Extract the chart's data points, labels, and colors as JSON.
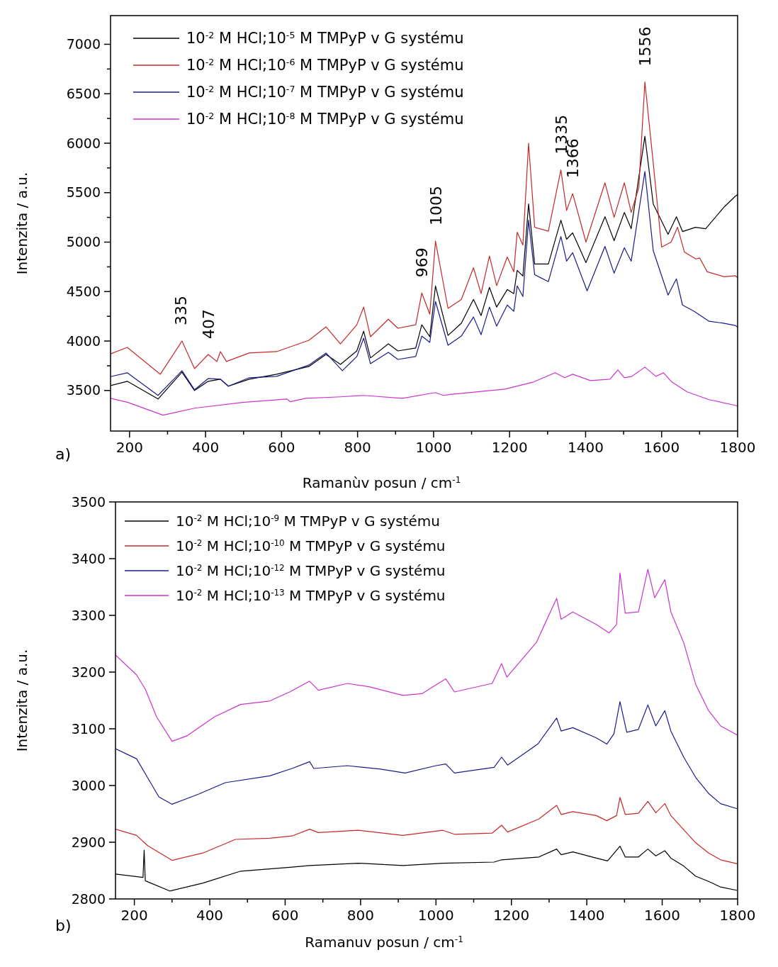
{
  "chart_data": [
    {
      "type": "line",
      "xlabel": "Ramanùv posun / cm$^{-1}$",
      "ylabel": "Intenzita / a.u.",
      "xlim": [
        150,
        1800
      ],
      "xticks": [
        200,
        {
          "value": 300,
          "label": null
        },
        400,
        {
          "value": 500,
          "label": null
        },
        600,
        {
          "value": 700,
          "label": null
        },
        800,
        {
          "value": 900,
          "label": null
        },
        1000,
        {
          "value": 1100,
          "label": null
        },
        1200,
        {
          "value": 1300,
          "label": null
        },
        1400,
        {
          "value": 1500,
          "label": null
        },
        1600,
        {
          "value": 1700,
          "label": null
        },
        1800
      ],
      "ylim": [
        3090,
        7290
      ],
      "yticks": [
        3500,
        {
          "value": 3750,
          "label": null
        },
        4000,
        {
          "value": 4250,
          "label": null
        },
        4500,
        {
          "value": 4750,
          "label": null
        },
        5000,
        {
          "value": 5250,
          "label": null
        },
        5500,
        {
          "value": 5750,
          "label": null
        },
        6000,
        {
          "value": 6250,
          "label": null
        },
        6500,
        {
          "value": 6750,
          "label": null
        },
        7000
      ],
      "grid": false,
      "legend": "top left",
      "annotations": [
        "a)",
        {
          "text": "335",
          "x": 335,
          "y": 4000
        },
        {
          "text": "407",
          "x": 407,
          "y": 3864
        },
        {
          "text": "969",
          "x": 969,
          "y": 4486
        },
        {
          "text": "1005",
          "x": 1005,
          "y": 5010
        },
        {
          "text": "1335",
          "x": 1335,
          "y": 5730
        },
        {
          "text": "1366",
          "x": 1366,
          "y": 5490
        },
        {
          "text": "1556",
          "x": 1556,
          "y": 6620
        }
      ],
      "series": [
        {
          "name": "10$^{-2}$ M HCl;10$^{-5}$ M TMPyP v G systému",
          "color": "#000000",
          "x": [
            150,
            194,
            275,
            338,
            371,
            407,
            439,
            460,
            515,
            587,
            672,
            717,
            755,
            798,
            816,
            834,
            881,
            906,
            953,
            969,
            990,
            1005,
            1038,
            1073,
            1105,
            1125,
            1147,
            1166,
            1194,
            1211,
            1220,
            1235,
            1250,
            1266,
            1302,
            1335,
            1350,
            1366,
            1401,
            1451,
            1475,
            1502,
            1520,
            1556,
            1578,
            1617,
            1639,
            1655,
            1689,
            1716,
            1765,
            1794,
            1800
          ],
          "values": [
            3550,
            3593,
            3414,
            3686,
            3500,
            3593,
            3614,
            3543,
            3614,
            3664,
            3743,
            3864,
            3764,
            3900,
            4100,
            3829,
            3971,
            3900,
            3929,
            4164,
            4043,
            4557,
            4057,
            4179,
            4421,
            4257,
            4543,
            4343,
            4521,
            4479,
            4714,
            4657,
            5386,
            4779,
            4779,
            5221,
            5029,
            5093,
            4793,
            5257,
            5014,
            5300,
            5136,
            6071,
            5386,
            5079,
            5257,
            5107,
            5150,
            5136,
            5357,
            5464,
            5480
          ]
        },
        {
          "name": "10$^{-2}$ M HCl;10$^{-6}$ M TMPyP v G systému",
          "color": "#c62828",
          "x": [
            150,
            194,
            281,
            338,
            371,
            407,
            430,
            439,
            455,
            515,
            587,
            672,
            717,
            755,
            798,
            816,
            834,
            881,
            906,
            953,
            969,
            990,
            1005,
            1038,
            1073,
            1105,
            1125,
            1147,
            1166,
            1194,
            1211,
            1220,
            1235,
            1250,
            1266,
            1302,
            1335,
            1350,
            1366,
            1401,
            1451,
            1475,
            1502,
            1520,
            1540,
            1556,
            1578,
            1600,
            1625,
            1642,
            1660,
            1690,
            1700,
            1720,
            1765,
            1794,
            1800
          ],
          "values": [
            3870,
            3936,
            3664,
            4000,
            3721,
            3864,
            3793,
            3893,
            3793,
            3879,
            3893,
            4007,
            4143,
            3971,
            4164,
            4343,
            4043,
            4221,
            4129,
            4164,
            4486,
            4271,
            5010,
            4330,
            4420,
            4740,
            4480,
            4860,
            4560,
            4850,
            4700,
            5100,
            4970,
            6000,
            5150,
            5110,
            5730,
            5320,
            5490,
            5000,
            5600,
            5250,
            5600,
            5300,
            5550,
            6620,
            5800,
            4950,
            5000,
            5150,
            4900,
            4830,
            4840,
            4700,
            4650,
            4660,
            4640
          ]
        },
        {
          "name": "10$^{-2}$ M HCl;10$^{-7}$ M TMPyP v G systému",
          "color": "#1a1a8c",
          "x": [
            150,
            194,
            275,
            338,
            371,
            407,
            439,
            460,
            515,
            587,
            672,
            717,
            760,
            798,
            816,
            834,
            881,
            906,
            953,
            969,
            990,
            1005,
            1038,
            1073,
            1105,
            1125,
            1147,
            1166,
            1194,
            1211,
            1220,
            1235,
            1250,
            1266,
            1302,
            1335,
            1350,
            1366,
            1404,
            1451,
            1475,
            1502,
            1520,
            1556,
            1578,
            1617,
            1639,
            1655,
            1686,
            1725,
            1765,
            1794,
            1800
          ],
          "values": [
            3640,
            3679,
            3450,
            3700,
            3507,
            3621,
            3614,
            3543,
            3629,
            3643,
            3757,
            3879,
            3700,
            3843,
            4029,
            3771,
            3886,
            3814,
            3843,
            4050,
            3986,
            4400,
            3957,
            4050,
            4243,
            4064,
            4343,
            4150,
            4364,
            4300,
            4557,
            4450,
            5221,
            4671,
            4600,
            5057,
            4807,
            4893,
            4507,
            4957,
            4686,
            4943,
            4807,
            5714,
            4914,
            4464,
            4629,
            4364,
            4300,
            4200,
            4179,
            4157,
            4140
          ]
        },
        {
          "name": "10$^{-2}$ M HCl;10$^{-8}$ M TMPyP v G systému",
          "color": "#cc33cc",
          "x": [
            150,
            196,
            288,
            371,
            497,
            614,
            623,
            663,
            755,
            816,
            918,
            1005,
            1026,
            1044,
            1188,
            1263,
            1320,
            1345,
            1366,
            1413,
            1464,
            1485,
            1502,
            1522,
            1556,
            1585,
            1605,
            1627,
            1667,
            1725,
            1794,
            1800
          ],
          "values": [
            3420,
            3379,
            3250,
            3321,
            3379,
            3414,
            3386,
            3421,
            3436,
            3450,
            3421,
            3479,
            3450,
            3460,
            3514,
            3586,
            3679,
            3629,
            3664,
            3600,
            3614,
            3707,
            3629,
            3643,
            3736,
            3643,
            3679,
            3586,
            3486,
            3407,
            3350,
            3340
          ]
        }
      ]
    },
    {
      "type": "line",
      "xlabel": "Ramanuv posun / cm$^{-1}$",
      "ylabel": "Intenzita / a.u.",
      "xlim": [
        150,
        1800
      ],
      "xticks": [
        200,
        {
          "value": 300,
          "label": null
        },
        400,
        {
          "value": 500,
          "label": null
        },
        600,
        {
          "value": 700,
          "label": null
        },
        800,
        {
          "value": 900,
          "label": null
        },
        1000,
        {
          "value": 1100,
          "label": null
        },
        1200,
        {
          "value": 1300,
          "label": null
        },
        1400,
        {
          "value": 1500,
          "label": null
        },
        1600,
        {
          "value": 1700,
          "label": null
        },
        1800
      ],
      "ylim": [
        2800,
        3500
      ],
      "yticks": [
        2800,
        2900,
        3000,
        3100,
        3200,
        3300,
        3400,
        3500
      ],
      "grid": false,
      "legend": "top left",
      "annotations": [
        "b)"
      ],
      "series": [
        {
          "name": "10$^{-2}$ M HCl;10$^{-9}$ M TMPyP v G systému",
          "color": "#000000",
          "x": [
            150,
            223,
            226,
            229,
            294,
            382,
            482,
            618,
            665,
            794,
            912,
            1018,
            1154,
            1174,
            1273,
            1320,
            1332,
            1363,
            1425,
            1455,
            1488,
            1502,
            1537,
            1562,
            1583,
            1607,
            1623,
            1657,
            1689,
            1723,
            1755,
            1799
          ],
          "values": [
            2844,
            2838,
            2886,
            2832,
            2814,
            2828,
            2849,
            2856,
            2859,
            2863,
            2859,
            2863,
            2865,
            2869,
            2874,
            2888,
            2878,
            2883,
            2872,
            2867,
            2893,
            2874,
            2874,
            2888,
            2876,
            2885,
            2872,
            2858,
            2840,
            2831,
            2821,
            2815
          ]
        },
        {
          "name": "10$^{-2}$ M HCl;10$^{-10}$ M TMPyP v G systému",
          "color": "#c62828",
          "x": [
            150,
            206,
            235,
            300,
            382,
            468,
            559,
            618,
            665,
            688,
            794,
            912,
            1018,
            1049,
            1149,
            1174,
            1190,
            1273,
            1320,
            1332,
            1363,
            1425,
            1453,
            1479,
            1488,
            1502,
            1537,
            1562,
            1583,
            1607,
            1623,
            1657,
            1689,
            1723,
            1755,
            1799
          ],
          "values": [
            2923,
            2912,
            2894,
            2868,
            2881,
            2905,
            2907,
            2911,
            2923,
            2917,
            2921,
            2912,
            2921,
            2914,
            2916,
            2930,
            2918,
            2941,
            2965,
            2949,
            2954,
            2947,
            2938,
            2947,
            2979,
            2949,
            2951,
            2972,
            2952,
            2968,
            2947,
            2922,
            2899,
            2881,
            2869,
            2862
          ]
        },
        {
          "name": "10$^{-2}$ M HCl;10$^{-12}$ M TMPyP v G systému",
          "color": "#1a1a8c",
          "x": [
            150,
            206,
            235,
            265,
            300,
            371,
            441,
            559,
            618,
            665,
            676,
            765,
            853,
            918,
            1000,
            1026,
            1049,
            1154,
            1174,
            1190,
            1270,
            1320,
            1332,
            1363,
            1425,
            1453,
            1472,
            1488,
            1506,
            1537,
            1562,
            1583,
            1607,
            1623,
            1657,
            1689,
            1723,
            1755,
            1799
          ],
          "values": [
            3065,
            3047,
            3014,
            2980,
            2967,
            2985,
            3005,
            3017,
            3030,
            3042,
            3030,
            3035,
            3029,
            3022,
            3035,
            3038,
            3022,
            3032,
            3050,
            3036,
            3073,
            3119,
            3096,
            3102,
            3084,
            3073,
            3091,
            3148,
            3094,
            3099,
            3142,
            3105,
            3132,
            3096,
            3050,
            3014,
            2986,
            2968,
            2959
          ]
        },
        {
          "name": "10$^{-2}$ M HCl;10$^{-13}$ M TMPyP v G systému",
          "color": "#cc33cc",
          "x": [
            150,
            206,
            229,
            259,
            300,
            341,
            412,
            482,
            559,
            612,
            665,
            688,
            765,
            824,
            912,
            963,
            982,
            1026,
            1049,
            1149,
            1174,
            1188,
            1266,
            1320,
            1332,
            1363,
            1425,
            1459,
            1479,
            1488,
            1502,
            1537,
            1562,
            1580,
            1607,
            1623,
            1657,
            1689,
            1723,
            1755,
            1799
          ],
          "values": [
            3230,
            3195,
            3170,
            3121,
            3078,
            3088,
            3121,
            3143,
            3149,
            3165,
            3184,
            3168,
            3180,
            3174,
            3159,
            3162,
            3170,
            3188,
            3165,
            3180,
            3215,
            3191,
            3252,
            3330,
            3293,
            3306,
            3284,
            3269,
            3284,
            3375,
            3304,
            3306,
            3381,
            3331,
            3363,
            3306,
            3252,
            3178,
            3132,
            3105,
            3089
          ]
        }
      ]
    }
  ]
}
